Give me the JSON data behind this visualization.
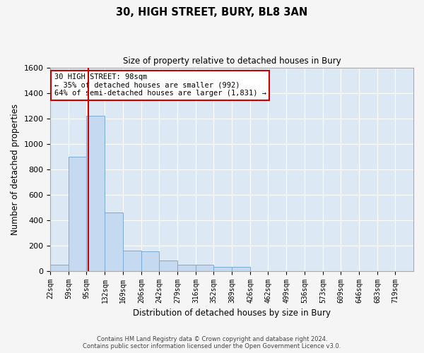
{
  "title": "30, HIGH STREET, BURY, BL8 3AN",
  "subtitle": "Size of property relative to detached houses in Bury",
  "xlabel": "Distribution of detached houses by size in Bury",
  "ylabel": "Number of detached properties",
  "footer_line1": "Contains HM Land Registry data © Crown copyright and database right 2024.",
  "footer_line2": "Contains public sector information licensed under the Open Government Licence v3.0.",
  "annotation_line1": "30 HIGH STREET: 98sqm",
  "annotation_line2": "← 35% of detached houses are smaller (992)",
  "annotation_line3": "64% of semi-detached houses are larger (1,831) →",
  "subject_size": 98,
  "bin_edges": [
    22,
    59,
    95,
    132,
    169,
    206,
    242,
    279,
    316,
    352,
    389,
    426,
    462,
    499,
    536,
    573,
    609,
    646,
    683,
    719,
    756
  ],
  "bin_counts": [
    50,
    900,
    1220,
    460,
    160,
    155,
    80,
    50,
    50,
    30,
    30,
    0,
    0,
    0,
    0,
    0,
    0,
    0,
    0,
    0
  ],
  "bar_color": "#c5d9f0",
  "bar_edge_color": "#7aaad4",
  "bar_linewidth": 0.7,
  "red_line_color": "#cc0000",
  "fig_bg_color": "#f5f5f5",
  "plot_bg_color": "#dce9f5",
  "ylim": [
    0,
    1600
  ],
  "yticks": [
    0,
    200,
    400,
    600,
    800,
    1000,
    1200,
    1400,
    1600
  ],
  "grid_color": "#ffffff",
  "annotation_box_color": "#ffffff",
  "annotation_box_edge": "#cc0000"
}
